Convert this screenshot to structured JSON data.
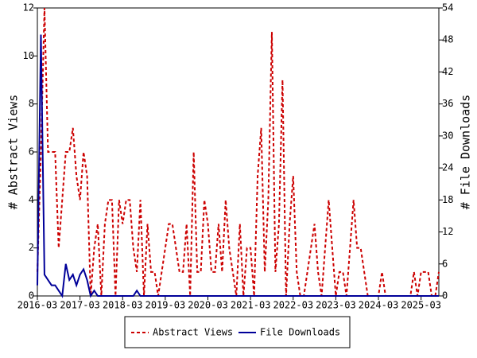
{
  "chart_data": {
    "type": "line",
    "y_label": "# Abstract Views",
    "y2_label": "# File Downloads",
    "categories": [
      "2016-03",
      null,
      null,
      null,
      null,
      null,
      null,
      null,
      null,
      null,
      null,
      null,
      "2017-03",
      null,
      null,
      null,
      null,
      null,
      null,
      null,
      null,
      null,
      null,
      null,
      "2018-03",
      null,
      null,
      null,
      null,
      null,
      null,
      null,
      null,
      null,
      null,
      null,
      "2019-03",
      null,
      null,
      null,
      null,
      null,
      null,
      null,
      null,
      null,
      null,
      null,
      "2020-03",
      null,
      null,
      null,
      null,
      null,
      null,
      null,
      null,
      null,
      null,
      null,
      "2021-03",
      null,
      null,
      null,
      null,
      null,
      null,
      null,
      null,
      null,
      null,
      null,
      "2022-03",
      null,
      null,
      null,
      null,
      null,
      null,
      null,
      null,
      null,
      null,
      null,
      "2023-03",
      null,
      null,
      null,
      null,
      null,
      null,
      null,
      null,
      null,
      null,
      null,
      "2024-03",
      null,
      null,
      null,
      null,
      null,
      null,
      null,
      null,
      null,
      null,
      null,
      "2025-03",
      null,
      null,
      null,
      null,
      null
    ],
    "series": [
      {
        "name": "Abstract Views",
        "color": "#cc0000",
        "dash": true,
        "values": [
          1,
          6,
          12,
          6,
          6,
          6,
          2,
          4,
          6,
          6,
          7,
          5,
          4,
          6,
          5,
          0,
          2,
          3,
          0,
          3,
          4,
          4,
          0,
          4,
          3,
          4,
          4,
          2,
          1,
          4,
          0,
          3,
          1,
          1,
          0,
          1,
          2,
          3,
          3,
          2,
          1,
          1,
          3,
          0,
          6,
          1,
          1,
          4,
          3,
          1,
          1,
          3,
          1,
          4,
          2,
          1,
          0,
          3,
          0,
          2,
          2,
          0,
          5,
          7,
          1,
          4,
          11,
          1,
          3,
          9,
          0,
          3,
          5,
          1,
          0,
          0,
          1,
          2,
          3,
          1,
          0,
          2,
          4,
          2,
          0,
          1,
          1,
          0,
          2,
          4,
          2,
          2,
          1,
          0,
          0,
          0,
          0,
          1,
          0,
          0,
          0,
          0,
          0,
          0,
          0,
          0,
          1,
          0,
          1,
          1,
          1,
          0,
          0,
          1
        ]
      },
      {
        "name": "File Downloads",
        "color": "#000099",
        "axis": "y2",
        "values": [
          2,
          49,
          4,
          3,
          2,
          2,
          1,
          0,
          6,
          3,
          4,
          2,
          4,
          5,
          3,
          0,
          1,
          0,
          0,
          0,
          0,
          0,
          0,
          0,
          0,
          0,
          0,
          0,
          1,
          0,
          0,
          0,
          0,
          0,
          0,
          0,
          0,
          0,
          0,
          0,
          0,
          0,
          0,
          0,
          0,
          0,
          0,
          0,
          0,
          0,
          0,
          0,
          0,
          0,
          0,
          0,
          0,
          0,
          0,
          0,
          0,
          0,
          0,
          0,
          0,
          0,
          0,
          0,
          0,
          0,
          0,
          0,
          0,
          0,
          0,
          0,
          0,
          0,
          0,
          0,
          0,
          0,
          0,
          0,
          0,
          0,
          0,
          0,
          0,
          0,
          0,
          0,
          0,
          0,
          0,
          0,
          0,
          0,
          0,
          0,
          0,
          0,
          0,
          0,
          0,
          0,
          0,
          0,
          0,
          0,
          0,
          0,
          0,
          0
        ]
      }
    ],
    "ylim": [
      0,
      12
    ],
    "yticks": [
      0,
      2,
      4,
      6,
      8,
      10,
      12
    ],
    "y2lim": [
      0,
      54
    ],
    "y2ticks": [
      0,
      6,
      12,
      18,
      24,
      30,
      36,
      42,
      48,
      54
    ]
  }
}
